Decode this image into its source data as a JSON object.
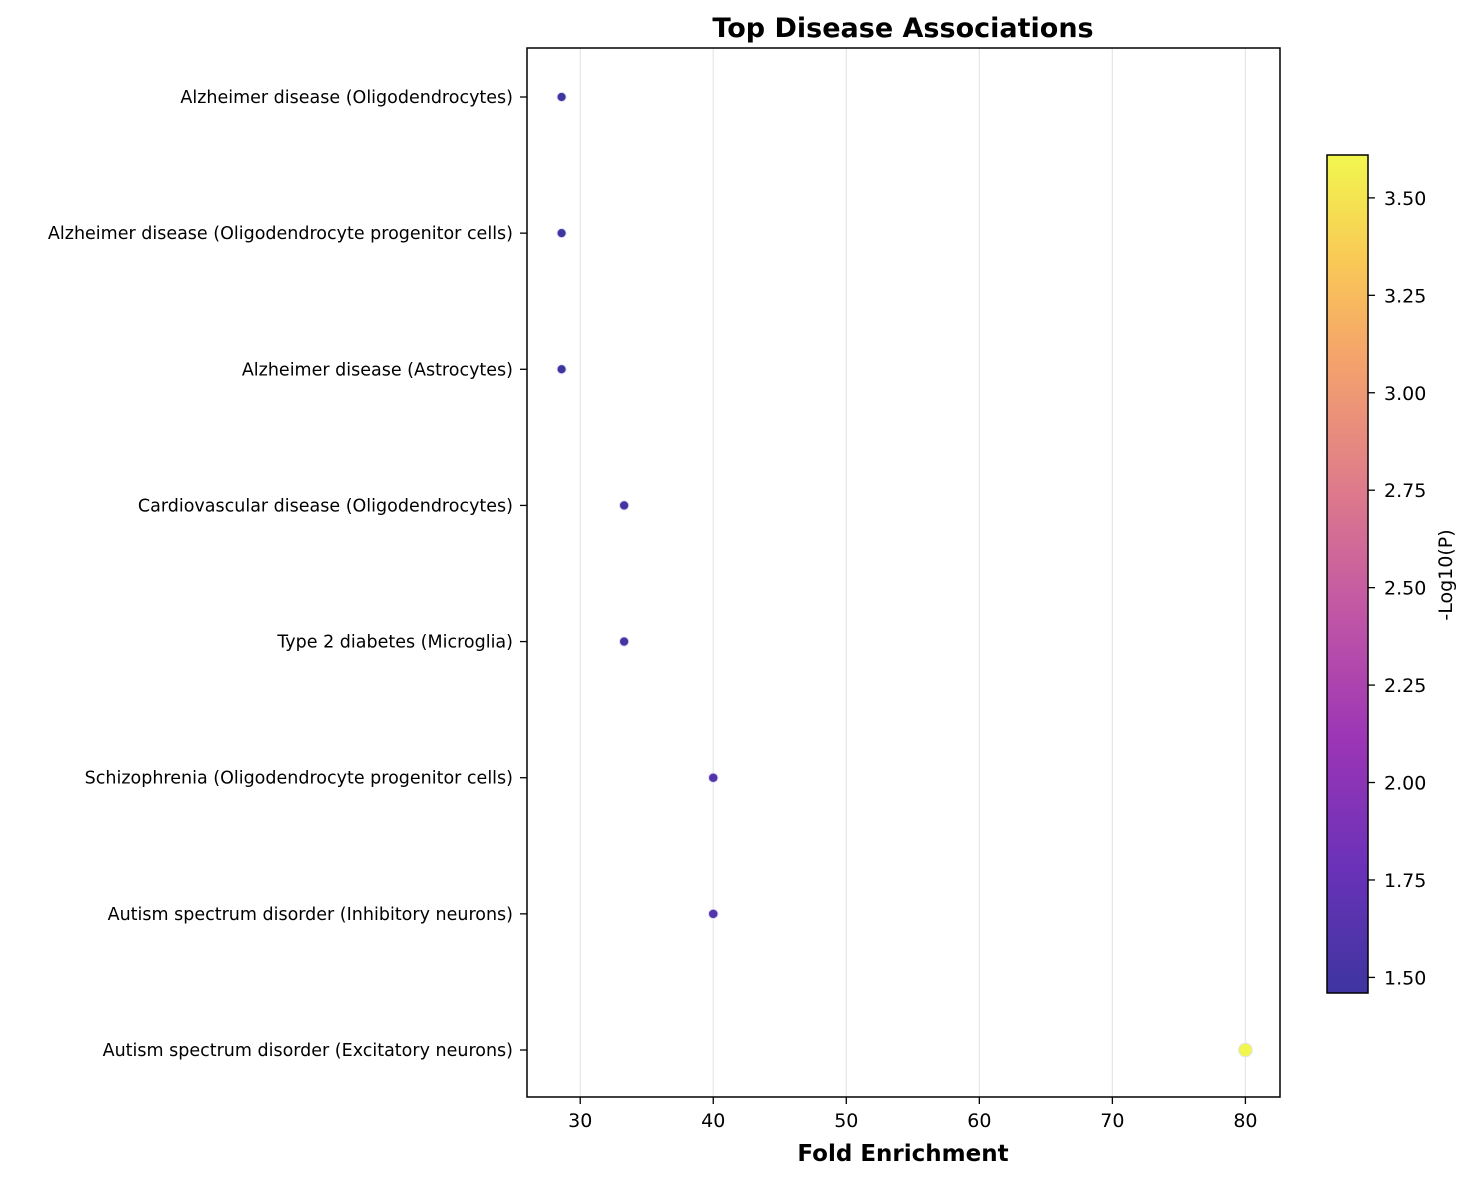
{
  "chart_data": {
    "type": "scatter",
    "title": "Top Disease Associations",
    "xlabel": "Fold Enrichment",
    "ylabel": "",
    "xlim": [
      26,
      82.6
    ],
    "xticks": [
      30,
      40,
      50,
      60,
      70,
      80
    ],
    "grid": "vertical",
    "categories": [
      "Alzheimer disease (Oligodendrocytes)",
      "Alzheimer disease (Oligodendrocyte progenitor cells)",
      "Alzheimer disease (Astrocytes)",
      "Cardiovascular disease (Oligodendrocytes)",
      "Type 2 diabetes (Microglia)",
      "Schizophrenia (Oligodendrocyte progenitor cells)",
      "Autism spectrum disorder (Inhibitory neurons)",
      "Autism spectrum disorder (Excitatory neurons)"
    ],
    "points": [
      {
        "category": "Alzheimer disease (Oligodendrocytes)",
        "x": 28.6,
        "color_value": 1.46
      },
      {
        "category": "Alzheimer disease (Oligodendrocyte progenitor cells)",
        "x": 28.6,
        "color_value": 1.46
      },
      {
        "category": "Alzheimer disease (Astrocytes)",
        "x": 28.6,
        "color_value": 1.46
      },
      {
        "category": "Cardiovascular disease (Oligodendrocytes)",
        "x": 33.3,
        "color_value": 1.52
      },
      {
        "category": "Type 2 diabetes (Microglia)",
        "x": 33.3,
        "color_value": 1.52
      },
      {
        "category": "Schizophrenia (Oligodendrocyte progenitor cells)",
        "x": 40.0,
        "color_value": 1.62
      },
      {
        "category": "Autism spectrum disorder (Inhibitory neurons)",
        "x": 40.0,
        "color_value": 1.62
      },
      {
        "category": "Autism spectrum disorder (Excitatory neurons)",
        "x": 80.0,
        "color_value": 3.61
      }
    ],
    "colorbar": {
      "label": "-Log10(P)",
      "colormap": "plasma",
      "range": [
        1.46,
        3.61
      ],
      "ticks": [
        1.5,
        1.75,
        2.0,
        2.25,
        2.5,
        2.75,
        3.0,
        3.25,
        3.5
      ],
      "tick_labels": [
        "1.50",
        "1.75",
        "2.00",
        "2.25",
        "2.50",
        "2.75",
        "3.00",
        "3.25",
        "3.50"
      ]
    }
  }
}
